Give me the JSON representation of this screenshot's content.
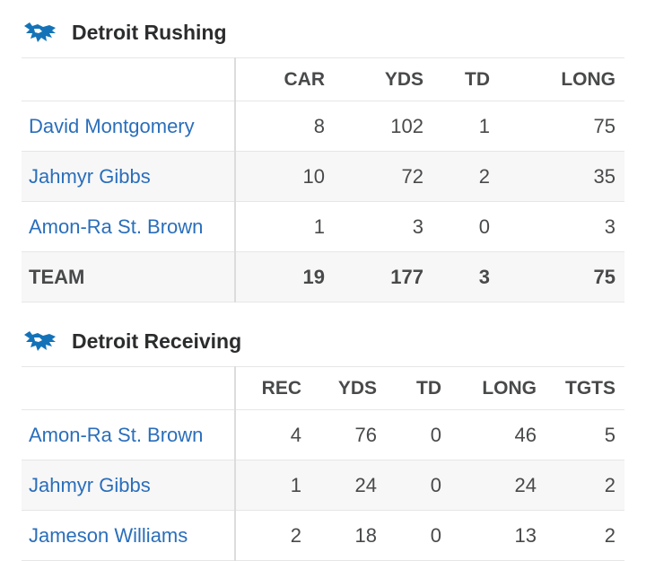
{
  "colors": {
    "team_blue": "#1473b8",
    "link": "#2a6ebb",
    "text": "#2b2c2d"
  },
  "rushing": {
    "icon": "lions-logo-icon",
    "title": "Detroit Rushing",
    "columns": [
      "CAR",
      "YDS",
      "TD",
      "LONG"
    ],
    "rows": [
      {
        "name": "David Montgomery",
        "stats": [
          "8",
          "102",
          "1",
          "75"
        ]
      },
      {
        "name": "Jahmyr Gibbs",
        "stats": [
          "10",
          "72",
          "2",
          "35"
        ]
      },
      {
        "name": "Amon-Ra St. Brown",
        "stats": [
          "1",
          "3",
          "0",
          "3"
        ]
      }
    ],
    "total": {
      "name": "TEAM",
      "stats": [
        "19",
        "177",
        "3",
        "75"
      ]
    }
  },
  "receiving": {
    "icon": "lions-logo-icon",
    "title": "Detroit Receiving",
    "columns": [
      "REC",
      "YDS",
      "TD",
      "LONG",
      "TGTS"
    ],
    "rows": [
      {
        "name": "Amon-Ra St. Brown",
        "stats": [
          "4",
          "76",
          "0",
          "46",
          "5"
        ]
      },
      {
        "name": "Jahmyr Gibbs",
        "stats": [
          "1",
          "24",
          "0",
          "24",
          "2"
        ]
      },
      {
        "name": "Jameson Williams",
        "stats": [
          "2",
          "18",
          "0",
          "13",
          "2"
        ]
      }
    ]
  }
}
